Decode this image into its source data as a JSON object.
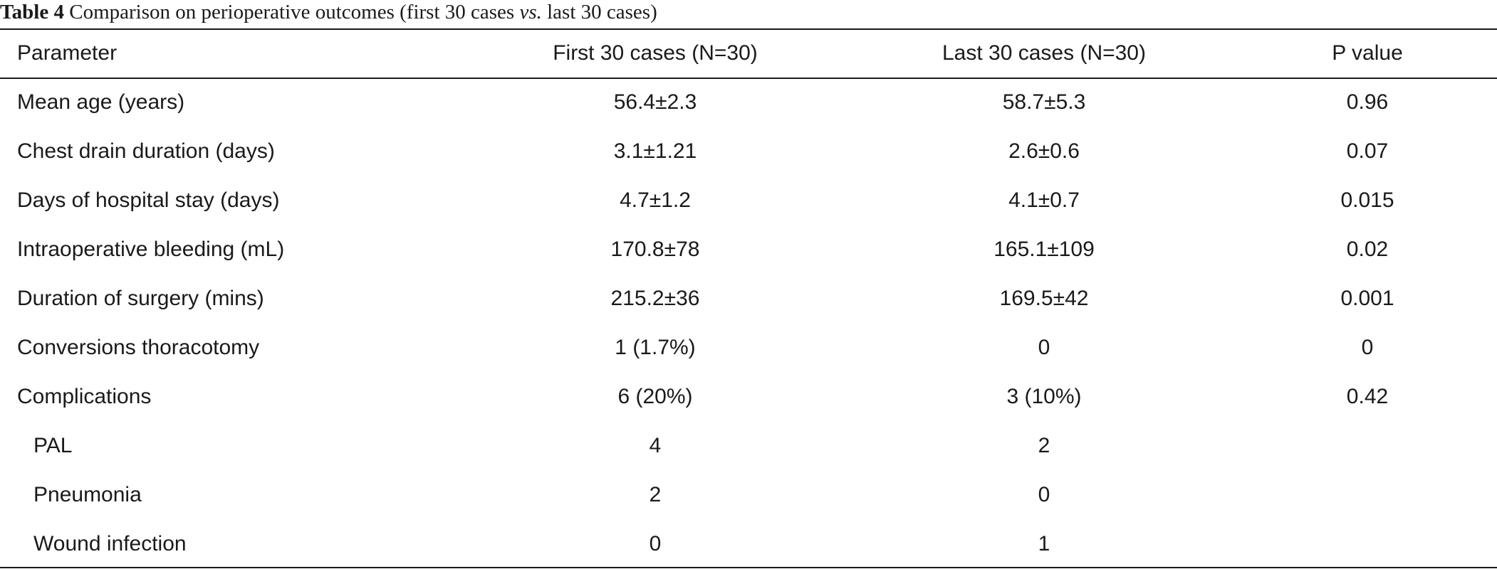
{
  "caption": {
    "label": "Table 4",
    "text_before": "Comparison on perioperative outcomes (first 30 cases ",
    "italic": "vs.",
    "text_after": " last 30 cases)"
  },
  "table": {
    "headers": [
      "Parameter",
      "First 30 cases (N=30)",
      "Last 30 cases (N=30)",
      "P value"
    ],
    "rows": [
      {
        "parameter": "Mean age (years)",
        "first": "56.4±2.3",
        "last": "58.7±5.3",
        "p": "0.96"
      },
      {
        "parameter": "Chest drain duration (days)",
        "first": "3.1±1.21",
        "last": "2.6±0.6",
        "p": "0.07"
      },
      {
        "parameter": "Days of hospital stay (days)",
        "first": "4.7±1.2",
        "last": "4.1±0.7",
        "p": "0.015"
      },
      {
        "parameter": "Intraoperative bleeding (mL)",
        "first": "170.8±78",
        "last": "165.1±109",
        "p": "0.02"
      },
      {
        "parameter": "Duration of surgery (mins)",
        "first": "215.2±36",
        "last": "169.5±42",
        "p": "0.001"
      },
      {
        "parameter": "Conversions thoracotomy",
        "first": "1 (1.7%)",
        "last": "0",
        "p": "0"
      },
      {
        "parameter": "Complications",
        "first": "6 (20%)",
        "last": "3 (10%)",
        "p": "0.42"
      },
      {
        "parameter": "PAL",
        "first": "4",
        "last": "2",
        "p": ""
      },
      {
        "parameter": "Pneumonia",
        "first": "2",
        "last": "0",
        "p": ""
      },
      {
        "parameter": "Wound infection",
        "first": "0",
        "last": "1",
        "p": ""
      }
    ]
  }
}
